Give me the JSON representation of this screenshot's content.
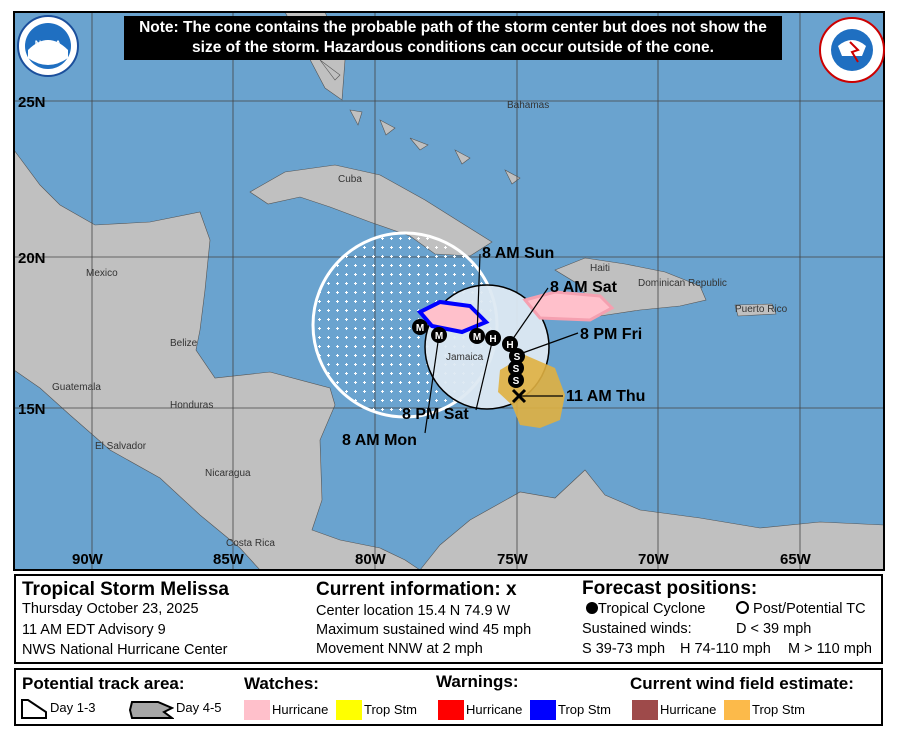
{
  "note": "Note: The cone contains the probable path of the storm center but does not show the size of the storm. Hazardous conditions can occur outside of the cone.",
  "logos": {
    "left": "NOAA",
    "right": "NATIONAL WEATHER SERVICE"
  },
  "map": {
    "lat_labels": [
      "25N",
      "20N",
      "15N"
    ],
    "lon_labels": [
      "90W",
      "85W",
      "80W",
      "75W",
      "70W",
      "65W"
    ],
    "place_labels": [
      "Bahamas",
      "Cuba",
      "Mexico",
      "Belize",
      "Guatemala",
      "Honduras",
      "El Salvador",
      "Nicaragua",
      "Costa Rica",
      "Haiti",
      "Dominican Republic",
      "Puerto Rico",
      "Jamaica"
    ],
    "forecast_points": [
      {
        "label": "11 AM Thu",
        "symbol": "X"
      },
      {
        "label": "8 PM Fri",
        "symbol": "S"
      },
      {
        "label": "8 AM Sat",
        "symbol": "H"
      },
      {
        "label": "8 PM Sat",
        "symbol": "H"
      },
      {
        "label": "8 AM Sun",
        "symbol": "M"
      },
      {
        "label": "8 AM Mon",
        "symbol": "M"
      }
    ],
    "colors": {
      "water": "#6aa3cf",
      "land": "#c0c0c0",
      "cone": "#dde9f2",
      "trop_stm_wind": "#f7b538",
      "hurricane_watch": "#ffc0cb",
      "trop_stm_warning": "#0000ff"
    }
  },
  "info": {
    "title": "Tropical Storm Melissa",
    "date": "Thursday October 23, 2025",
    "advisory": "11 AM EDT Advisory 9",
    "center": "NWS National Hurricane Center",
    "current_title": "Current information:",
    "current_symbol": "x",
    "location": "Center location 15.4 N 74.9 W",
    "wind": "Maximum sustained wind 45 mph",
    "movement": "Movement NNW at 2 mph",
    "forecast_title": "Forecast positions:",
    "tc": "Tropical Cyclone",
    "ptc": "Post/Potential TC",
    "sustained": "Sustained winds:",
    "d": "D < 39 mph",
    "s": "S 39-73 mph",
    "hh": "H 74-110 mph",
    "m": "M > 110 mph"
  },
  "legend": {
    "track_title": "Potential track area:",
    "day13": "Day 1-3",
    "day45": "Day 4-5",
    "watches_title": "Watches:",
    "warnings_title": "Warnings:",
    "wind_title": "Current wind field estimate:",
    "hurricane": "Hurricane",
    "trop_stm": "Trop Stm",
    "colors": {
      "hurricane_watch": "#ffc0cb",
      "trop_stm_watch": "#ffff00",
      "hurricane_warning": "#ff0000",
      "trop_stm_warning": "#0000ff",
      "hurricane_wind": "#9e4a4a",
      "trop_stm_wind": "#fcba4a"
    }
  }
}
